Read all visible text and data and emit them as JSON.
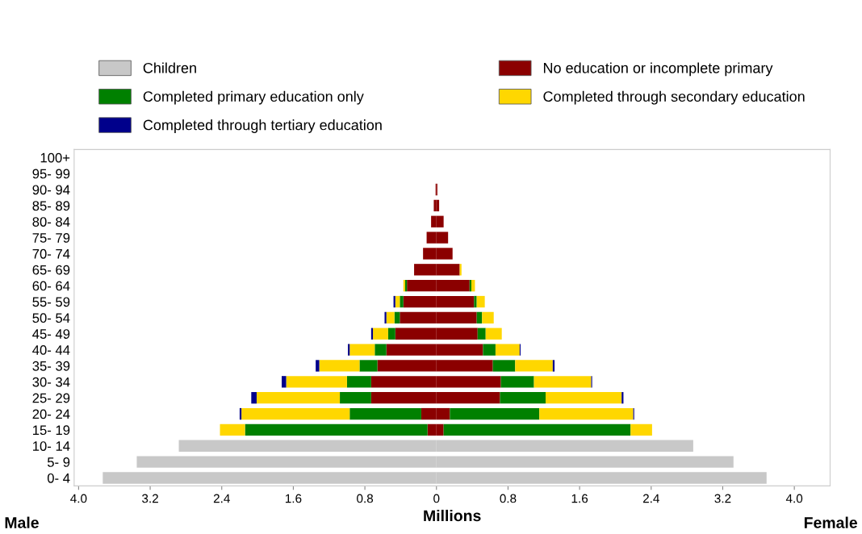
{
  "chart_data": {
    "type": "bar",
    "orientation": "horizontal",
    "stacked": true,
    "xlabel": "Millions",
    "annotations": [
      "Male",
      "Female"
    ],
    "categories": [
      "100+",
      "95- 99",
      "90- 94",
      "85- 89",
      "80- 84",
      "75- 79",
      "70- 74",
      "65- 69",
      "60- 64",
      "55- 59",
      "50- 54",
      "45- 49",
      "40- 44",
      "35- 39",
      "30- 34",
      "25- 29",
      "20- 24",
      "15- 19",
      "10- 14",
      "5- 9",
      "0- 4"
    ],
    "series": [
      {
        "name": "Children",
        "color": "#c8c8c8",
        "values": [
          null,
          null,
          null,
          null,
          null,
          null,
          null,
          null,
          null,
          null,
          null,
          null,
          null,
          null,
          null,
          null,
          null,
          null,
          -2.88,
          -3.35,
          -3.73
        ]
      },
      {
        "name": "No education or incomplete primary",
        "color": "#8b0000",
        "values": [
          null,
          null,
          -0.01,
          -0.03,
          -0.06,
          -0.11,
          -0.15,
          -0.25,
          -0.33,
          -0.37,
          -0.41,
          -0.46,
          -0.56,
          -0.66,
          -0.73,
          -0.73,
          -0.17,
          -0.1,
          null,
          null,
          null
        ]
      },
      {
        "name": "Completed primary education only",
        "color": "#008000",
        "values": [
          null,
          null,
          null,
          null,
          null,
          null,
          null,
          null,
          -0.02,
          -0.04,
          -0.06,
          -0.08,
          -0.13,
          -0.2,
          -0.27,
          -0.35,
          -0.8,
          -2.04,
          null,
          null,
          null
        ]
      },
      {
        "name": "Completed through secondary education",
        "color": "#ffd700",
        "values": [
          null,
          null,
          null,
          null,
          null,
          null,
          null,
          null,
          -0.02,
          -0.05,
          -0.09,
          -0.17,
          -0.28,
          -0.45,
          -0.68,
          -0.93,
          -1.21,
          -0.28,
          null,
          null,
          null
        ]
      },
      {
        "name": "Completed through tertiary education",
        "color": "#00008b",
        "values": [
          null,
          null,
          null,
          null,
          null,
          null,
          null,
          null,
          null,
          -0.02,
          -0.02,
          -0.02,
          -0.02,
          -0.04,
          -0.05,
          -0.06,
          -0.02,
          null,
          null,
          null,
          null
        ]
      },
      {
        "color": "#c8c8c8",
        "values": [
          null,
          null,
          null,
          null,
          null,
          null,
          null,
          null,
          null,
          null,
          null,
          null,
          null,
          null,
          null,
          null,
          null,
          null,
          2.87,
          3.32,
          3.69
        ]
      },
      {
        "color": "#8b0000",
        "values": [
          null,
          null,
          0.01,
          0.03,
          0.08,
          0.13,
          0.18,
          0.26,
          0.37,
          0.42,
          0.45,
          0.46,
          0.52,
          0.63,
          0.72,
          0.71,
          0.15,
          0.08,
          null,
          null,
          null
        ]
      },
      {
        "color": "#008000",
        "values": [
          null,
          null,
          null,
          null,
          null,
          null,
          null,
          null,
          0.02,
          0.03,
          0.06,
          0.09,
          0.14,
          0.25,
          0.37,
          0.51,
          1.0,
          2.09,
          null,
          null,
          null
        ]
      },
      {
        "color": "#ffd700",
        "values": [
          null,
          null,
          null,
          null,
          null,
          null,
          null,
          0.02,
          0.04,
          0.09,
          0.13,
          0.18,
          0.27,
          0.42,
          0.64,
          0.85,
          1.05,
          0.24,
          null,
          null,
          null
        ]
      },
      {
        "color": "#00008b",
        "values": [
          null,
          null,
          null,
          null,
          null,
          null,
          null,
          null,
          null,
          null,
          null,
          null,
          0.01,
          0.02,
          0.01,
          0.02,
          0.01,
          null,
          null,
          null,
          null
        ]
      }
    ],
    "xlim": [
      -4.05,
      4.4
    ],
    "xticks": [
      {
        "value": -4,
        "label": "4.0"
      },
      {
        "value": -3.2,
        "label": "3.2"
      },
      {
        "value": -2.4,
        "label": "2.4"
      },
      {
        "value": -1.6,
        "label": "1.6"
      },
      {
        "value": -0.8,
        "label": "0.8"
      },
      0,
      {
        "value": 0.8,
        "label": "0.8"
      },
      {
        "value": 1.6,
        "label": "1.6"
      },
      {
        "value": 2.4,
        "label": "2.4"
      },
      {
        "value": 3.2,
        "label": "3.2"
      },
      {
        "value": 4,
        "label": "4.0"
      }
    ],
    "legend": "top",
    "grid": false
  }
}
